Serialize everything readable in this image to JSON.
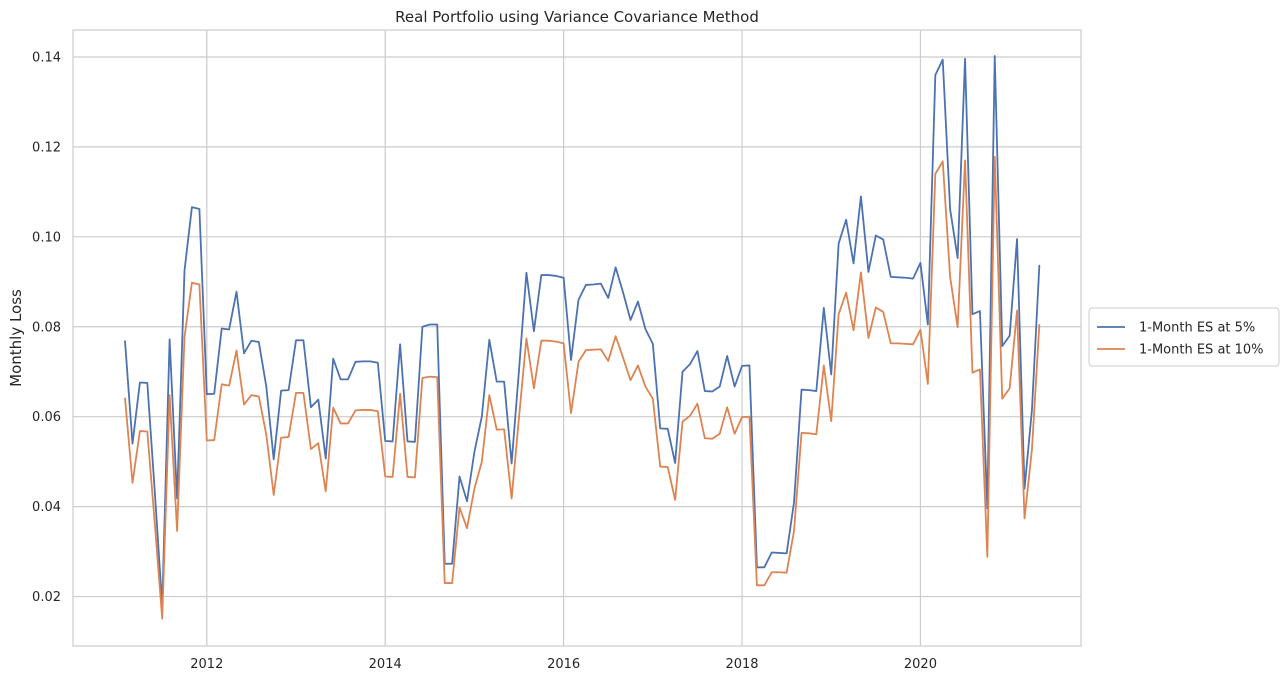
{
  "chart_data": {
    "type": "line",
    "title": "Real Portfolio using Variance Covariance Method",
    "xlabel": "",
    "ylabel": "Monthly Loss",
    "xlim": [
      2010.5,
      2021.8
    ],
    "ylim": [
      0.009,
      0.146
    ],
    "x_ticks": [
      2012,
      2014,
      2016,
      2018,
      2020
    ],
    "x_tick_labels": [
      "2012",
      "2014",
      "2016",
      "2018",
      "2020"
    ],
    "y_ticks": [
      0.02,
      0.04,
      0.06,
      0.08,
      0.1,
      0.12,
      0.14
    ],
    "y_tick_labels": [
      "0.02",
      "0.04",
      "0.06",
      "0.08",
      "0.10",
      "0.12",
      "0.14"
    ],
    "grid": true,
    "legend_position": "right, outside plot area",
    "x": [
      2011.083,
      2011.167,
      2011.25,
      2011.333,
      2011.417,
      2011.5,
      2011.583,
      2011.667,
      2011.75,
      2011.833,
      2011.917,
      2012.0,
      2012.083,
      2012.167,
      2012.25,
      2012.333,
      2012.417,
      2012.5,
      2012.583,
      2012.667,
      2012.75,
      2012.833,
      2012.917,
      2013.0,
      2013.083,
      2013.167,
      2013.25,
      2013.333,
      2013.417,
      2013.5,
      2013.583,
      2013.667,
      2013.75,
      2013.833,
      2013.917,
      2014.0,
      2014.083,
      2014.167,
      2014.25,
      2014.333,
      2014.417,
      2014.5,
      2014.583,
      2014.667,
      2014.75,
      2014.833,
      2014.917,
      2015.0,
      2015.083,
      2015.167,
      2015.25,
      2015.333,
      2015.417,
      2015.5,
      2015.583,
      2015.667,
      2015.75,
      2015.833,
      2015.917,
      2016.0,
      2016.083,
      2016.167,
      2016.25,
      2016.333,
      2016.417,
      2016.5,
      2016.583,
      2016.667,
      2016.75,
      2016.833,
      2016.917,
      2017.0,
      2017.083,
      2017.167,
      2017.25,
      2017.333,
      2017.417,
      2017.5,
      2017.583,
      2017.667,
      2017.75,
      2017.833,
      2017.917,
      2018.0,
      2018.083,
      2018.167,
      2018.25,
      2018.333,
      2018.417,
      2018.5,
      2018.583,
      2018.667,
      2018.75,
      2018.833,
      2018.917,
      2019.0,
      2019.083,
      2019.167,
      2019.25,
      2019.333,
      2019.417,
      2019.5,
      2019.583,
      2019.667,
      2019.75,
      2019.833,
      2019.917,
      2020.0,
      2020.083,
      2020.167,
      2020.25,
      2020.333,
      2020.417,
      2020.5,
      2020.583,
      2020.667,
      2020.75,
      2020.833,
      2020.917,
      2021.0,
      2021.083,
      2021.167,
      2021.25,
      2021.333
    ],
    "series": [
      {
        "name": "1-Month ES at 5%",
        "color": "#4c72b0",
        "values": [
          0.0768,
          0.054,
          0.0676,
          0.0675,
          0.0433,
          0.018,
          0.0772,
          0.0418,
          0.0925,
          0.1066,
          0.1062,
          0.065,
          0.0651,
          0.0796,
          0.0794,
          0.0878,
          0.0741,
          0.0769,
          0.0766,
          0.0667,
          0.0505,
          0.0658,
          0.0659,
          0.077,
          0.077,
          0.0621,
          0.0638,
          0.0507,
          0.0729,
          0.0683,
          0.0683,
          0.0722,
          0.0723,
          0.0723,
          0.072,
          0.0546,
          0.0545,
          0.0761,
          0.0545,
          0.0544,
          0.08,
          0.0805,
          0.0805,
          0.0273,
          0.0273,
          0.0467,
          0.0412,
          0.0522,
          0.06,
          0.0771,
          0.0678,
          0.0678,
          0.0496,
          0.0704,
          0.092,
          0.079,
          0.0915,
          0.0915,
          0.0913,
          0.0909,
          0.0726,
          0.086,
          0.0893,
          0.0894,
          0.0896,
          0.0864,
          0.0932,
          0.0876,
          0.0815,
          0.0856,
          0.0795,
          0.0762,
          0.0574,
          0.0573,
          0.0497,
          0.07,
          0.0717,
          0.0746,
          0.0657,
          0.0656,
          0.0667,
          0.0735,
          0.0667,
          0.0713,
          0.0714,
          0.0265,
          0.0265,
          0.0298,
          0.0297,
          0.0296,
          0.041,
          0.066,
          0.0659,
          0.0657,
          0.0842,
          0.0694,
          0.0985,
          0.1038,
          0.0941,
          0.109,
          0.0922,
          0.1003,
          0.0994,
          0.0911,
          0.091,
          0.0909,
          0.0907,
          0.0942,
          0.0805,
          0.136,
          0.1394,
          0.1061,
          0.0953,
          0.1396,
          0.0828,
          0.0835,
          0.0396,
          0.1402,
          0.0757,
          0.078,
          0.0995,
          0.044,
          0.0615,
          0.0936
        ]
      },
      {
        "name": "1-Month ES at 10%",
        "color": "#dd8452",
        "values": [
          0.0641,
          0.0453,
          0.0568,
          0.0567,
          0.0362,
          0.0151,
          0.0648,
          0.0346,
          0.0777,
          0.0898,
          0.0894,
          0.0547,
          0.0548,
          0.0672,
          0.0669,
          0.0747,
          0.0627,
          0.0648,
          0.0645,
          0.056,
          0.0426,
          0.0553,
          0.0555,
          0.0653,
          0.0653,
          0.0528,
          0.0541,
          0.0434,
          0.062,
          0.0585,
          0.0585,
          0.0614,
          0.0615,
          0.0615,
          0.0612,
          0.0467,
          0.0466,
          0.0651,
          0.0466,
          0.0465,
          0.0686,
          0.0689,
          0.0688,
          0.023,
          0.023,
          0.0398,
          0.0352,
          0.044,
          0.05,
          0.0648,
          0.0571,
          0.0572,
          0.0418,
          0.0599,
          0.0774,
          0.0663,
          0.0769,
          0.0769,
          0.0767,
          0.0763,
          0.0608,
          0.0722,
          0.0748,
          0.0749,
          0.075,
          0.0724,
          0.0779,
          0.0731,
          0.0681,
          0.0714,
          0.0667,
          0.064,
          0.0489,
          0.0488,
          0.0415,
          0.0589,
          0.0602,
          0.0629,
          0.0552,
          0.0551,
          0.0562,
          0.0621,
          0.0562,
          0.0599,
          0.06,
          0.0225,
          0.0225,
          0.0254,
          0.0254,
          0.0253,
          0.0346,
          0.0564,
          0.0563,
          0.0561,
          0.0714,
          0.059,
          0.0828,
          0.0876,
          0.0792,
          0.0921,
          0.0775,
          0.0843,
          0.0833,
          0.0763,
          0.0763,
          0.0762,
          0.0761,
          0.0793,
          0.0673,
          0.114,
          0.1168,
          0.091,
          0.0799,
          0.117,
          0.0698,
          0.0705,
          0.0288,
          0.1178,
          0.064,
          0.0663,
          0.0836,
          0.0374,
          0.0527,
          0.0804
        ]
      }
    ]
  }
}
